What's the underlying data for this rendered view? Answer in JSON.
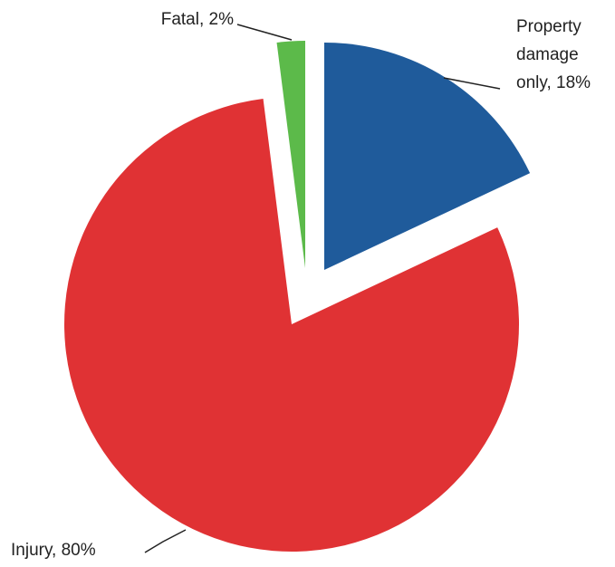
{
  "chart_data": {
    "type": "pie",
    "values": [
      18,
      80,
      2
    ],
    "value_labels": [
      "Property damage only, 18%",
      "Injury, 80%",
      "Fatal, 2%"
    ],
    "colors": [
      "#1f5b9b",
      "#e03234",
      "#5cba4a"
    ]
  }
}
